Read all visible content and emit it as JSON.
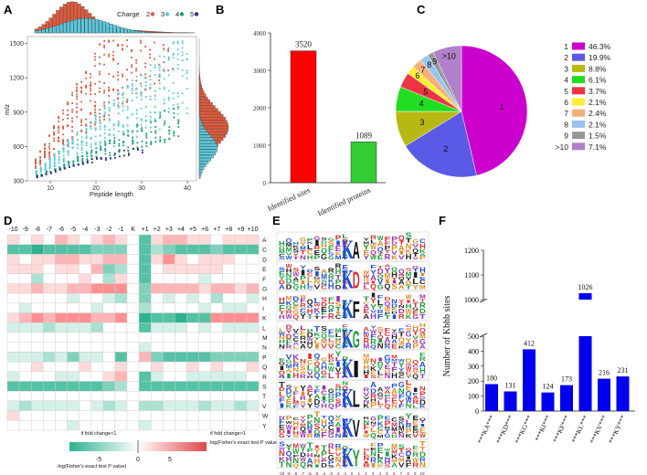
{
  "panels": {
    "A": "A",
    "B": "B",
    "C": "C",
    "D": "D",
    "E": "E",
    "F": "F"
  },
  "colors": {
    "charge2": "#e05a3c",
    "charge3": "#5bc8dc",
    "charge4": "#1a9e6e",
    "charge5": "#2a2f8f",
    "barB1": "#ff0000",
    "barB2": "#33cc33",
    "barF": "#0000ee",
    "heat_pos": "#e0464a",
    "heat_neg": "#2bb38f"
  },
  "chart_data": [
    {
      "id": "A",
      "type": "scatter",
      "xlabel": "Peptide length",
      "ylabel": "m/z",
      "xlim": [
        5,
        42
      ],
      "ylim": [
        300,
        1560
      ],
      "xticks": [
        "10",
        "20",
        "30",
        "40"
      ],
      "yticks": [
        "300",
        "600",
        "900",
        "1200",
        "1500"
      ],
      "legend_title": "Charge",
      "series": [
        {
          "name": "2",
          "color": "#e05a3c"
        },
        {
          "name": "3",
          "color": "#5bc8dc"
        },
        {
          "name": "4",
          "color": "#1a9e6e"
        },
        {
          "name": "5",
          "color": "#2a2f8f"
        }
      ]
    },
    {
      "id": "B",
      "type": "bar",
      "categories": [
        "Identified sites",
        "Identified proteins"
      ],
      "values": [
        3520,
        1089
      ],
      "data_labels": [
        "3520",
        "1089"
      ],
      "ylim": [
        0,
        4000
      ],
      "yticks": [
        "0",
        "1000",
        "2000",
        "3000",
        "4000"
      ]
    },
    {
      "id": "C",
      "type": "pie",
      "labels": [
        "1",
        "2",
        "3",
        "4",
        "5",
        "6",
        "7",
        "8",
        "9",
        ">10"
      ],
      "values": [
        46.3,
        19.9,
        8.8,
        6.1,
        3.7,
        2.1,
        2.4,
        2.1,
        1.5,
        7.1
      ],
      "percent_labels": [
        "46.3%",
        "19.9%",
        "8.8%",
        "6.1%",
        "3.7%",
        "2.1%",
        "2.4%",
        "2.1%",
        "1.5%",
        "7.1%"
      ],
      "colors": [
        "#cc00cc",
        "#5a5ae6",
        "#b8b814",
        "#22dd22",
        "#ee3344",
        "#ffee33",
        "#f4b07a",
        "#99c4ee",
        "#999999",
        "#b080c8"
      ]
    },
    {
      "id": "D",
      "type": "heatmap",
      "columns": [
        "-10",
        "-9",
        "-8",
        "-7",
        "-6",
        "-5",
        "-4",
        "-3",
        "-2",
        "-1",
        "K",
        "+1",
        "+2",
        "+3",
        "+4",
        "+5",
        "+6",
        "+7",
        "+8",
        "+9",
        "+10"
      ],
      "rows": [
        "A",
        "C",
        "D",
        "E",
        "F",
        "G",
        "H",
        "I",
        "K",
        "L",
        "M",
        "N",
        "P",
        "Q",
        "R",
        "S",
        "T",
        "V",
        "W",
        "Y"
      ],
      "legend_left": "if fold change<1\n-log(Fisher's exact test P value)",
      "legend_right": "if fold change>1\nlog(Fisher's exact test P value)",
      "legend_ticks": [
        "-5",
        "0",
        "5"
      ],
      "values": [
        [
          1,
          0,
          1,
          0,
          2,
          1,
          0,
          1,
          2,
          1,
          0,
          -4,
          1,
          2,
          2,
          1,
          1,
          0,
          1,
          1,
          1
        ],
        [
          -4,
          -4,
          -5,
          -4,
          -4,
          -4,
          -4,
          -3,
          -3,
          -3,
          0,
          -4,
          -2,
          -3,
          -4,
          -4,
          -4,
          -3,
          -4,
          -4,
          -4
        ],
        [
          1,
          0,
          1,
          1,
          2,
          2,
          1,
          1,
          2,
          2,
          0,
          -4,
          1,
          3,
          1,
          0,
          1,
          1,
          1,
          0,
          0
        ],
        [
          1,
          1,
          1,
          0,
          1,
          1,
          0,
          2,
          -3,
          -2,
          0,
          -4,
          0,
          1,
          1,
          1,
          1,
          1,
          0,
          0,
          0
        ],
        [
          0,
          0,
          -2,
          0,
          0,
          0,
          1,
          0,
          -2,
          1,
          0,
          -4,
          0,
          0,
          0,
          0,
          -1,
          0,
          0,
          0,
          0
        ],
        [
          1,
          1,
          2,
          1,
          1,
          2,
          2,
          3,
          3,
          3,
          0,
          -3,
          2,
          2,
          2,
          2,
          1,
          2,
          2,
          1,
          2
        ],
        [
          0,
          0,
          0,
          0,
          0,
          -1,
          0,
          0,
          -1,
          -2,
          0,
          -3,
          0,
          -1,
          0,
          -1,
          0,
          -2,
          0,
          0,
          -1
        ],
        [
          0,
          -1,
          0,
          0,
          0,
          0,
          0,
          -1,
          0,
          0,
          0,
          -2,
          0,
          0,
          0,
          0,
          -1,
          0,
          -1,
          -1,
          0
        ],
        [
          1,
          2,
          3,
          2,
          3,
          3,
          3,
          2,
          2,
          3,
          0,
          -5,
          -4,
          -4,
          -5,
          -4,
          -4,
          3,
          3,
          3,
          3
        ],
        [
          -1,
          -1,
          -1,
          -2,
          -1,
          -1,
          -1,
          -2,
          0,
          0,
          0,
          -4,
          -1,
          -1,
          -1,
          0,
          -1,
          0,
          -1,
          -1,
          -1
        ],
        [
          0,
          0,
          0,
          0,
          0,
          0,
          0,
          0,
          0,
          0,
          0,
          0,
          0,
          0,
          0,
          0,
          0,
          0,
          0,
          0,
          0
        ],
        [
          0,
          0,
          0,
          0,
          0,
          0,
          0,
          0,
          0,
          0,
          0,
          -1,
          0,
          0,
          0,
          0,
          0,
          0,
          0,
          0,
          0
        ],
        [
          -1,
          -1,
          -1,
          -2,
          -1,
          -3,
          -1,
          -1,
          0,
          -4,
          0,
          2,
          -3,
          -4,
          -4,
          -4,
          -4,
          -3,
          -3,
          -3,
          -3
        ],
        [
          0,
          0,
          1,
          0,
          0,
          0,
          1,
          0,
          0,
          1,
          0,
          0,
          1,
          0,
          0,
          1,
          0,
          1,
          0,
          0,
          1
        ],
        [
          -1,
          0,
          0,
          0,
          -1,
          -1,
          0,
          0,
          1,
          2,
          0,
          -4,
          -1,
          0,
          0,
          -1,
          -1,
          -1,
          -1,
          -1,
          0
        ],
        [
          -4,
          -4,
          -4,
          -4,
          -4,
          -4,
          -4,
          -4,
          -3,
          -2,
          0,
          -4,
          -4,
          -4,
          -4,
          -4,
          -4,
          -4,
          -4,
          -4,
          -4
        ],
        [
          0,
          0,
          0,
          0,
          0,
          0,
          0,
          0,
          0,
          0,
          0,
          0,
          0,
          0,
          0,
          0,
          0,
          0,
          0,
          0,
          0
        ],
        [
          -1,
          -2,
          -1,
          -1,
          -1,
          -1,
          0,
          -1,
          -2,
          -1,
          0,
          -2,
          -2,
          -1,
          -1,
          -1,
          -2,
          -1,
          -1,
          -2,
          -1
        ],
        [
          1,
          0,
          0,
          0,
          0,
          0,
          0,
          0,
          0,
          0,
          0,
          0,
          0,
          0,
          0,
          0,
          0,
          0,
          0,
          0,
          0
        ],
        [
          0,
          0,
          0,
          0,
          0,
          -1,
          0,
          0,
          0,
          0,
          0,
          -1,
          0,
          0,
          0,
          0,
          0,
          0,
          0,
          0,
          0
        ]
      ]
    },
    {
      "id": "E",
      "type": "table",
      "note": "sequence logos",
      "xticks": [
        "-10",
        "-9",
        "-8",
        "-7",
        "-6",
        "-5",
        "-4",
        "-3",
        "-2",
        "-1",
        "0",
        "1",
        "2",
        "3",
        "4",
        "5",
        "6",
        "7",
        "8",
        "9",
        "10"
      ],
      "center_letters": [
        "A",
        "D",
        "F",
        "G",
        "I",
        "L",
        "V",
        "Y"
      ]
    },
    {
      "id": "F",
      "type": "bar",
      "ylabel": "Number of Kbhb sites",
      "categories": [
        "***KA***",
        "***KD***",
        "***KG***",
        "***KI***",
        "***KF***",
        "***KL***",
        "***KV***",
        "***KY***"
      ],
      "values": [
        180,
        131,
        412,
        124,
        173,
        1026,
        216,
        231
      ],
      "data_labels": [
        "180",
        "131",
        "412",
        "124",
        "173",
        "1026",
        "216",
        "231"
      ],
      "yticks_lower": [
        "0",
        "100",
        "200",
        "300",
        "400",
        "500"
      ],
      "yticks_upper": [
        "1000",
        "1100",
        "1200"
      ]
    }
  ]
}
